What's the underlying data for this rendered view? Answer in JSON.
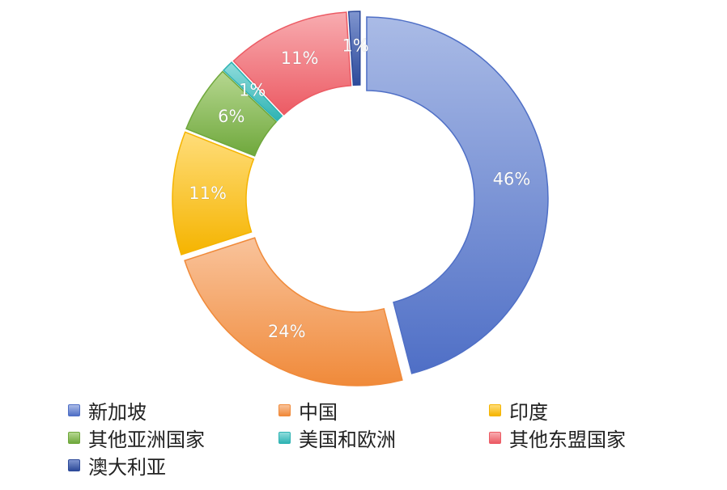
{
  "chart_data": {
    "type": "pie",
    "variant": "donut",
    "title": "",
    "slices": [
      {
        "label": "新加坡",
        "value": 46,
        "value_label": "46%",
        "color": "#4f6fc6",
        "color_light": "#aabbe6"
      },
      {
        "label": "中国",
        "value": 24,
        "value_label": "24%",
        "color": "#f08a3a",
        "color_light": "#f9c39b"
      },
      {
        "label": "印度",
        "value": 11,
        "value_label": "11%",
        "color": "#f5b400",
        "color_light": "#ffdd7a"
      },
      {
        "label": "其他亚洲国家",
        "value": 6,
        "value_label": "6%",
        "color": "#6fa83c",
        "color_light": "#b6d790"
      },
      {
        "label": "美国和欧洲",
        "value": 1,
        "value_label": "1%",
        "color": "#2fb3b3",
        "color_light": "#8fdcdc"
      },
      {
        "label": "其他东盟国家",
        "value": 11,
        "value_label": "11%",
        "color": "#ec5b64",
        "color_light": "#f8acb0"
      },
      {
        "label": "澳大利亚",
        "value": 1,
        "value_label": "1%",
        "color": "#2d4a9a",
        "color_light": "#7f95cf"
      }
    ],
    "legend_position": "bottom"
  }
}
